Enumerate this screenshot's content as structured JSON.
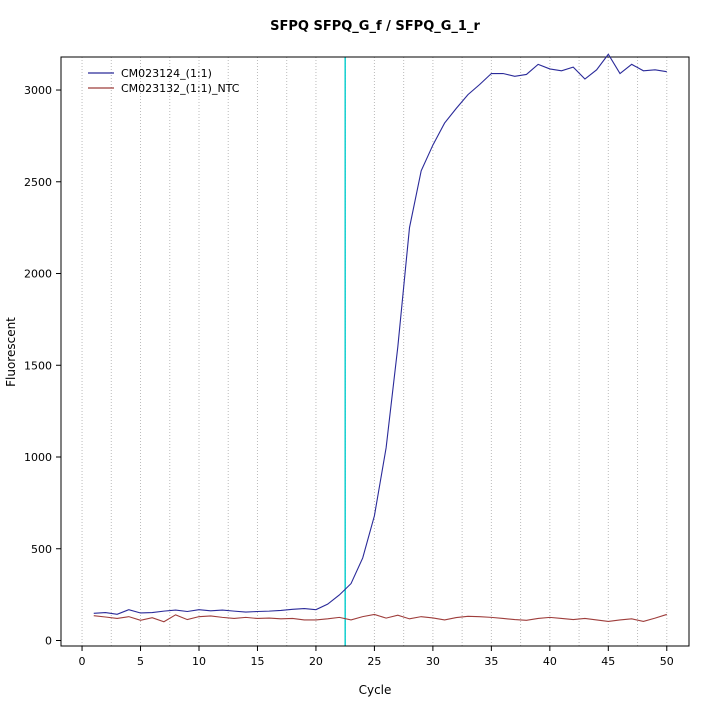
{
  "chart_data": {
    "type": "line",
    "title": "SFPQ  SFPQ_G_f / SFPQ_G_1_r",
    "xlabel": "Cycle",
    "ylabel": "Fluorescent",
    "xlim": [
      -1.8,
      51.9
    ],
    "ylim": [
      -30,
      3180
    ],
    "x_ticks": [
      0,
      5,
      10,
      15,
      20,
      25,
      30,
      35,
      40,
      45,
      50
    ],
    "y_ticks": [
      0,
      500,
      1000,
      1500,
      2000,
      2500,
      3000
    ],
    "grid": {
      "vertical_step": 2.5,
      "style": "dotted",
      "color": "#bbbbbb"
    },
    "threshold": {
      "x": 22.5,
      "color": "#00cccc"
    },
    "legend_position": "top-left",
    "x": [
      1,
      2,
      3,
      4,
      5,
      6,
      7,
      8,
      9,
      10,
      11,
      12,
      13,
      14,
      15,
      16,
      17,
      18,
      19,
      20,
      21,
      22,
      23,
      24,
      25,
      26,
      27,
      28,
      29,
      30,
      31,
      32,
      33,
      34,
      35,
      36,
      37,
      38,
      39,
      40,
      41,
      42,
      43,
      44,
      45,
      46,
      47,
      48,
      49,
      50
    ],
    "series": [
      {
        "name": "CM023124_(1:1)",
        "color": "#2a2a99",
        "values": [
          148,
          152,
          143,
          168,
          150,
          152,
          160,
          166,
          158,
          168,
          162,
          166,
          160,
          155,
          158,
          160,
          164,
          170,
          174,
          168,
          198,
          248,
          310,
          450,
          680,
          1050,
          1600,
          2250,
          2560,
          2700,
          2820,
          2900,
          2975,
          3030,
          3090,
          3090,
          3075,
          3085,
          3140,
          3115,
          3105,
          3125,
          3060,
          3110,
          3195,
          3090,
          3140,
          3105,
          3110,
          3100
        ]
      },
      {
        "name": "CM023132_(1:1)_NTC",
        "color": "#9e3d3b",
        "values": [
          135,
          128,
          120,
          130,
          110,
          124,
          102,
          140,
          114,
          130,
          134,
          126,
          120,
          126,
          120,
          122,
          118,
          120,
          112,
          112,
          118,
          126,
          112,
          130,
          142,
          122,
          138,
          118,
          130,
          123,
          112,
          125,
          132,
          130,
          126,
          120,
          114,
          110,
          120,
          126,
          120,
          114,
          120,
          112,
          104,
          112,
          118,
          104,
          122,
          142
        ]
      }
    ]
  }
}
